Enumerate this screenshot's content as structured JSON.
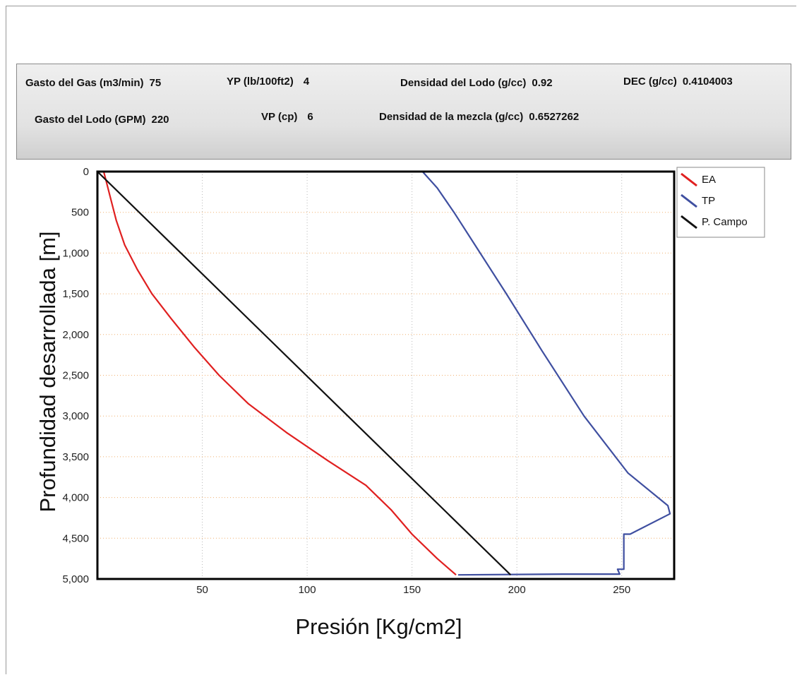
{
  "params": {
    "gasto_gas": {
      "label": "Gasto del Gas (m3/min)",
      "value": "75"
    },
    "yp": {
      "label": "YP (lb/100ft2)",
      "value": "4"
    },
    "densidad_lodo": {
      "label": "Densidad del Lodo (g/cc)",
      "value": "0.92"
    },
    "dec": {
      "label": "DEC (g/cc)",
      "value": "0.4104003"
    },
    "gasto_lodo": {
      "label": "Gasto del Lodo (GPM)",
      "value": "220"
    },
    "vp": {
      "label": "VP (cp)",
      "value": "6"
    },
    "densidad_mezcla": {
      "label": "Densidad de la mezcla (g/cc)",
      "value": "0.6527262"
    }
  },
  "chart_data": {
    "type": "line",
    "title": "",
    "xlabel": "Presión [Kg/cm2]",
    "ylabel": "Profundidad desarrollada [m]",
    "xlim": [
      0,
      275
    ],
    "ylim": [
      5000,
      0
    ],
    "x_ticks": [
      50,
      100,
      150,
      200,
      250
    ],
    "y_ticks": [
      0,
      500,
      1000,
      1500,
      2000,
      2500,
      3000,
      3500,
      4000,
      4500,
      5000
    ],
    "x_tick_labels": [
      "50",
      "100",
      "150",
      "200",
      "250"
    ],
    "y_tick_labels": [
      "0",
      "500",
      "1,000",
      "1,500",
      "2,000",
      "2,500",
      "3,000",
      "3,500",
      "4,000",
      "4,500",
      "5,000"
    ],
    "grid": true,
    "legend_position": "top-right outside",
    "series": [
      {
        "name": "EA",
        "color": "#e02020",
        "points": [
          [
            3,
            0
          ],
          [
            4,
            100
          ],
          [
            6,
            300
          ],
          [
            9,
            600
          ],
          [
            13,
            900
          ],
          [
            19,
            1200
          ],
          [
            26,
            1500
          ],
          [
            35,
            1800
          ],
          [
            46,
            2150
          ],
          [
            58,
            2500
          ],
          [
            72,
            2850
          ],
          [
            90,
            3200
          ],
          [
            110,
            3550
          ],
          [
            128,
            3850
          ],
          [
            140,
            4150
          ],
          [
            150,
            4450
          ],
          [
            162,
            4750
          ],
          [
            171,
            4950
          ]
        ]
      },
      {
        "name": "TP",
        "color": "#3f4fa0",
        "points": [
          [
            155,
            0
          ],
          [
            162,
            200
          ],
          [
            170,
            500
          ],
          [
            180,
            900
          ],
          [
            195,
            1500
          ],
          [
            212,
            2200
          ],
          [
            232,
            3000
          ],
          [
            253,
            3700
          ],
          [
            272,
            4100
          ],
          [
            273,
            4200
          ],
          [
            254,
            4450
          ],
          [
            251,
            4450
          ],
          [
            251,
            4880
          ],
          [
            248,
            4880
          ],
          [
            249,
            4940
          ],
          [
            222,
            4940
          ],
          [
            172,
            4950
          ]
        ]
      },
      {
        "name": "P. Campo",
        "color": "#111111",
        "points": [
          [
            0,
            0
          ],
          [
            197,
            4950
          ]
        ]
      }
    ]
  }
}
